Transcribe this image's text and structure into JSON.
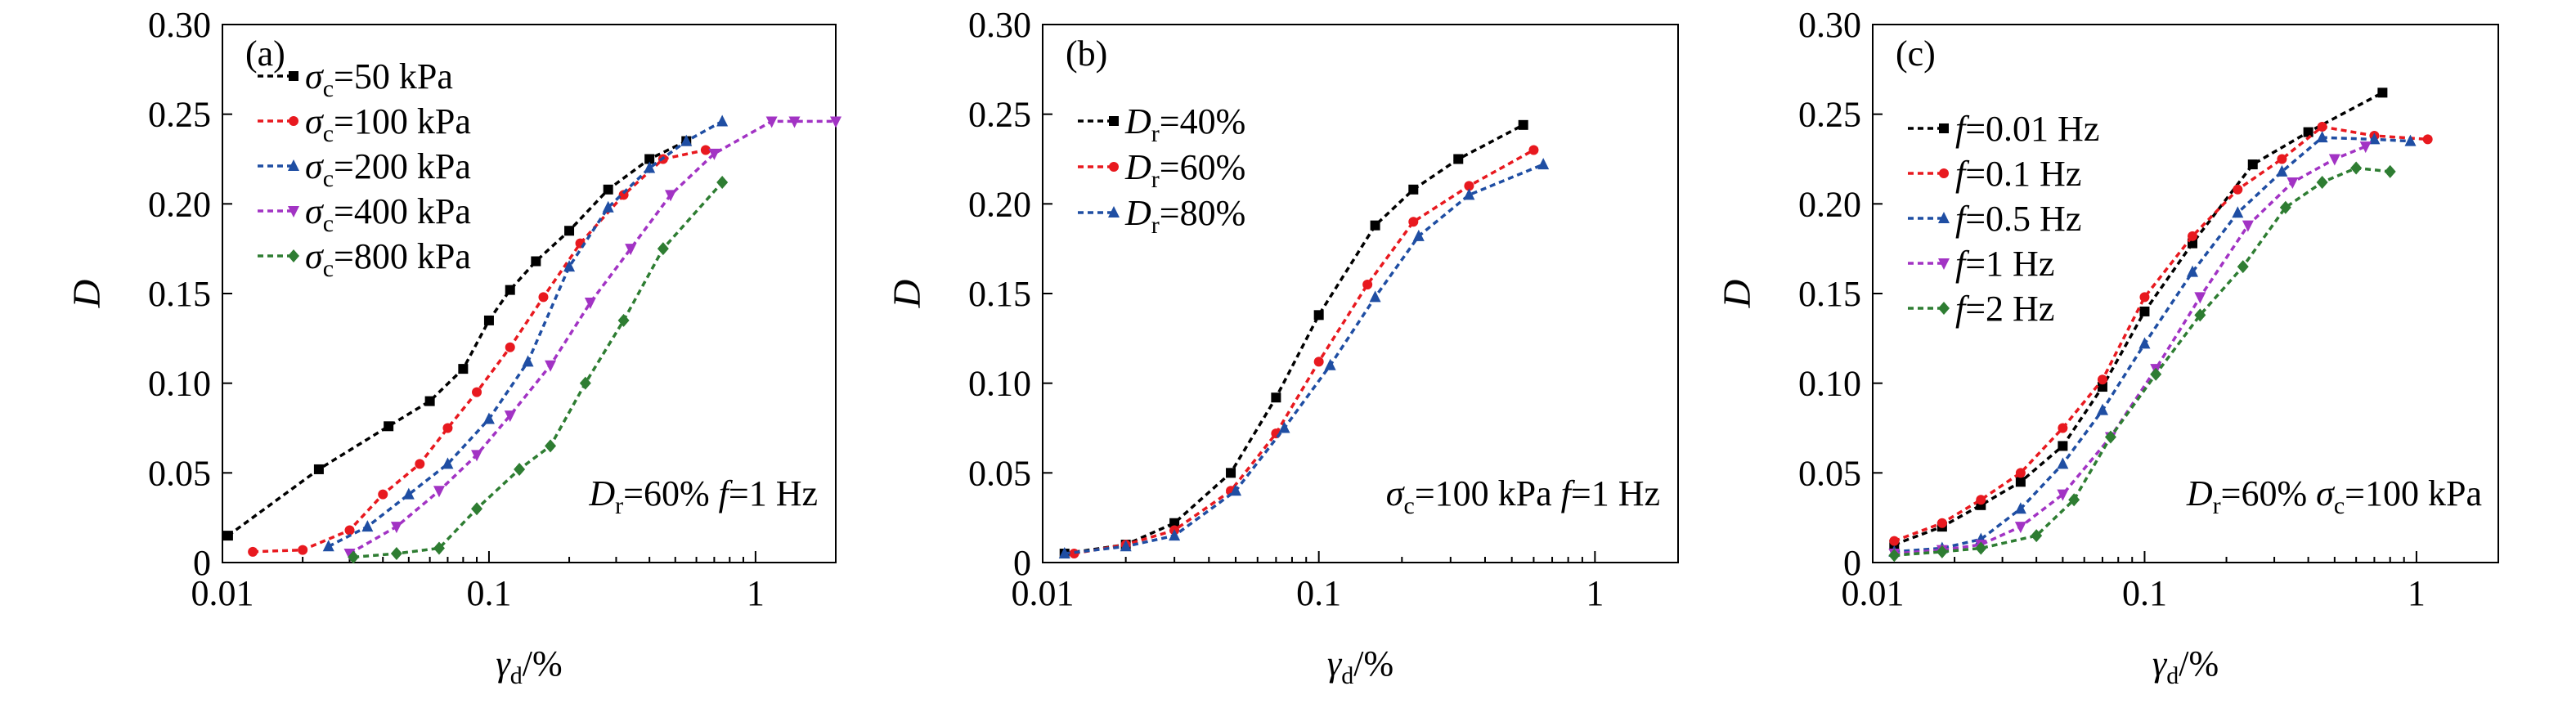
{
  "chart_data": [
    {
      "type": "line",
      "panel_label": "(a)",
      "xscale": "log",
      "xlim": [
        0.01,
        2
      ],
      "ylim": [
        0,
        0.3
      ],
      "xticks": [
        0.01,
        0.1,
        1
      ],
      "xtick_labels": [
        "0.01",
        "0.1",
        "1"
      ],
      "yticks": [
        0,
        0.05,
        0.1,
        0.15,
        0.2,
        0.25,
        0.3
      ],
      "ytick_labels": [
        "0",
        "0.05",
        "0.10",
        "0.15",
        "0.20",
        "0.25",
        "0.30"
      ],
      "xlabel": {
        "main": "γ",
        "sub": "d",
        "tail": "/%"
      },
      "ylabel": "D",
      "legend_position": "top-left",
      "annotation": [
        {
          "text": "D",
          "italic": true
        },
        {
          "text": "r",
          "sub": true
        },
        {
          "text": "=60%  ",
          "italic": false
        },
        {
          "text": "f",
          "italic": true
        },
        {
          "text": "=1 Hz",
          "italic": false
        }
      ],
      "series": [
        {
          "label": {
            "sym": "σ",
            "sub": "c",
            "rest": "=50 kPa"
          },
          "color": "#000000",
          "marker": "square",
          "x": [
            0.0105,
            0.023,
            0.042,
            0.06,
            0.08,
            0.1,
            0.12,
            0.15,
            0.2,
            0.28,
            0.4,
            0.55
          ],
          "y": [
            0.015,
            0.052,
            0.076,
            0.09,
            0.108,
            0.135,
            0.152,
            0.168,
            0.185,
            0.208,
            0.225,
            0.235
          ]
        },
        {
          "label": {
            "sym": "σ",
            "sub": "c",
            "rest": "=100 kPa"
          },
          "color": "#e8191f",
          "marker": "circle",
          "x": [
            0.013,
            0.02,
            0.03,
            0.04,
            0.055,
            0.07,
            0.09,
            0.12,
            0.16,
            0.22,
            0.32,
            0.45,
            0.65
          ],
          "y": [
            0.006,
            0.007,
            0.018,
            0.038,
            0.055,
            0.075,
            0.095,
            0.12,
            0.148,
            0.178,
            0.205,
            0.225,
            0.23
          ]
        },
        {
          "label": {
            "sym": "σ",
            "sub": "c",
            "rest": "=200 kPa"
          },
          "color": "#1f4ea3",
          "marker": "triangle-up",
          "x": [
            0.025,
            0.035,
            0.05,
            0.07,
            0.1,
            0.14,
            0.2,
            0.28,
            0.4,
            0.55,
            0.75
          ],
          "y": [
            0.009,
            0.02,
            0.038,
            0.055,
            0.08,
            0.112,
            0.165,
            0.198,
            0.22,
            0.235,
            0.246
          ]
        },
        {
          "label": {
            "sym": "σ",
            "sub": "c",
            "rest": "=400 kPa"
          },
          "color": "#a233c4",
          "marker": "triangle-down",
          "x": [
            0.03,
            0.045,
            0.065,
            0.09,
            0.12,
            0.17,
            0.24,
            0.34,
            0.48,
            0.7,
            1.15,
            1.4,
            2.0
          ],
          "y": [
            0.005,
            0.02,
            0.04,
            0.06,
            0.082,
            0.11,
            0.145,
            0.175,
            0.205,
            0.228,
            0.246,
            0.246,
            0.246
          ]
        },
        {
          "label": {
            "sym": "σ",
            "sub": "c",
            "rest": "=800 kPa"
          },
          "color": "#2e7d32",
          "marker": "diamond",
          "x": [
            0.031,
            0.045,
            0.065,
            0.09,
            0.13,
            0.17,
            0.23,
            0.32,
            0.45,
            0.75
          ],
          "y": [
            0.003,
            0.005,
            0.008,
            0.03,
            0.052,
            0.065,
            0.1,
            0.135,
            0.175,
            0.212
          ]
        }
      ]
    },
    {
      "type": "line",
      "panel_label": "(b)",
      "xscale": "log",
      "xlim": [
        0.01,
        2
      ],
      "ylim": [
        0,
        0.3
      ],
      "xticks": [
        0.01,
        0.1,
        1
      ],
      "xtick_labels": [
        "0.01",
        "0.1",
        "1"
      ],
      "yticks": [
        0,
        0.05,
        0.1,
        0.15,
        0.2,
        0.25,
        0.3
      ],
      "ytick_labels": [
        "0",
        "0.05",
        "0.10",
        "0.15",
        "0.20",
        "0.25",
        "0.30"
      ],
      "xlabel": {
        "main": "γ",
        "sub": "d",
        "tail": "/%"
      },
      "ylabel": "D",
      "legend_position": "top-left",
      "annotation": [
        {
          "text": "σ",
          "italic": true
        },
        {
          "text": "c",
          "sub": true
        },
        {
          "text": "=100 kPa  ",
          "italic": false
        },
        {
          "text": "f",
          "italic": true
        },
        {
          "text": "=1 Hz",
          "italic": false
        }
      ],
      "series": [
        {
          "label": {
            "sym": "D",
            "sub": "r",
            "rest": "=40%"
          },
          "color": "#000000",
          "marker": "square",
          "x": [
            0.012,
            0.02,
            0.03,
            0.048,
            0.07,
            0.1,
            0.16,
            0.22,
            0.32,
            0.55
          ],
          "y": [
            0.005,
            0.01,
            0.022,
            0.05,
            0.092,
            0.138,
            0.188,
            0.208,
            0.225,
            0.244
          ]
        },
        {
          "label": {
            "sym": "D",
            "sub": "r",
            "rest": "=60%"
          },
          "color": "#e8191f",
          "marker": "circle",
          "x": [
            0.013,
            0.02,
            0.03,
            0.048,
            0.07,
            0.1,
            0.15,
            0.22,
            0.35,
            0.6
          ],
          "y": [
            0.005,
            0.01,
            0.018,
            0.04,
            0.072,
            0.112,
            0.155,
            0.19,
            0.21,
            0.23
          ]
        },
        {
          "label": {
            "sym": "D",
            "sub": "r",
            "rest": "=80%"
          },
          "color": "#1f4ea3",
          "marker": "triangle-up",
          "x": [
            0.012,
            0.02,
            0.03,
            0.05,
            0.075,
            0.11,
            0.16,
            0.23,
            0.35,
            0.65
          ],
          "y": [
            0.005,
            0.009,
            0.015,
            0.04,
            0.075,
            0.11,
            0.148,
            0.182,
            0.205,
            0.222
          ]
        }
      ]
    },
    {
      "type": "line",
      "panel_label": "(c)",
      "xscale": "log",
      "xlim": [
        0.01,
        2
      ],
      "ylim": [
        0,
        0.3
      ],
      "xticks": [
        0.01,
        0.1,
        1
      ],
      "xtick_labels": [
        "0.01",
        "0.1",
        "1"
      ],
      "yticks": [
        0,
        0.05,
        0.1,
        0.15,
        0.2,
        0.25,
        0.3
      ],
      "ytick_labels": [
        "0",
        "0.05",
        "0.10",
        "0.15",
        "0.20",
        "0.25",
        "0.30"
      ],
      "xlabel": {
        "main": "γ",
        "sub": "d",
        "tail": "/%"
      },
      "ylabel": "D",
      "legend_position": "top-left",
      "annotation": [
        {
          "text": "D",
          "italic": true
        },
        {
          "text": "r",
          "sub": true
        },
        {
          "text": "=60%  ",
          "italic": false
        },
        {
          "text": "σ",
          "italic": true
        },
        {
          "text": "c",
          "sub": true
        },
        {
          "text": "=100 kPa",
          "italic": false
        }
      ],
      "series": [
        {
          "label": {
            "sym": "f",
            "sub": "",
            "rest": "=0.01 Hz"
          },
          "color": "#000000",
          "marker": "square",
          "x": [
            0.012,
            0.018,
            0.025,
            0.035,
            0.05,
            0.07,
            0.1,
            0.15,
            0.25,
            0.4,
            0.75
          ],
          "y": [
            0.01,
            0.02,
            0.032,
            0.045,
            0.065,
            0.098,
            0.14,
            0.178,
            0.222,
            0.24,
            0.262
          ]
        },
        {
          "label": {
            "sym": "f",
            "sub": "",
            "rest": "=0.1 Hz"
          },
          "color": "#e8191f",
          "marker": "circle",
          "x": [
            0.012,
            0.018,
            0.025,
            0.035,
            0.05,
            0.07,
            0.1,
            0.15,
            0.22,
            0.32,
            0.45,
            0.7,
            1.1
          ],
          "y": [
            0.012,
            0.022,
            0.035,
            0.05,
            0.075,
            0.102,
            0.148,
            0.182,
            0.208,
            0.225,
            0.243,
            0.238,
            0.236
          ]
        },
        {
          "label": {
            "sym": "f",
            "sub": "",
            "rest": "=0.5 Hz"
          },
          "color": "#1f4ea3",
          "marker": "triangle-up",
          "x": [
            0.012,
            0.018,
            0.025,
            0.035,
            0.05,
            0.07,
            0.1,
            0.15,
            0.22,
            0.32,
            0.45,
            0.7,
            0.95
          ],
          "y": [
            0.006,
            0.008,
            0.013,
            0.03,
            0.055,
            0.085,
            0.122,
            0.162,
            0.195,
            0.218,
            0.237,
            0.236,
            0.235
          ]
        },
        {
          "label": {
            "sym": "f",
            "sub": "",
            "rest": "=1 Hz"
          },
          "color": "#a233c4",
          "marker": "triangle-down",
          "x": [
            0.012,
            0.018,
            0.025,
            0.035,
            0.05,
            0.075,
            0.11,
            0.16,
            0.24,
            0.35,
            0.5,
            0.65
          ],
          "y": [
            0.005,
            0.007,
            0.01,
            0.02,
            0.038,
            0.07,
            0.108,
            0.148,
            0.188,
            0.212,
            0.225,
            0.232
          ]
        },
        {
          "label": {
            "sym": "f",
            "sub": "",
            "rest": "=2 Hz"
          },
          "color": "#2e7d32",
          "marker": "diamond",
          "x": [
            0.012,
            0.018,
            0.025,
            0.04,
            0.055,
            0.075,
            0.11,
            0.16,
            0.23,
            0.33,
            0.45,
            0.6,
            0.8
          ],
          "y": [
            0.004,
            0.006,
            0.008,
            0.015,
            0.035,
            0.07,
            0.105,
            0.138,
            0.165,
            0.198,
            0.212,
            0.22,
            0.218
          ]
        }
      ]
    }
  ]
}
